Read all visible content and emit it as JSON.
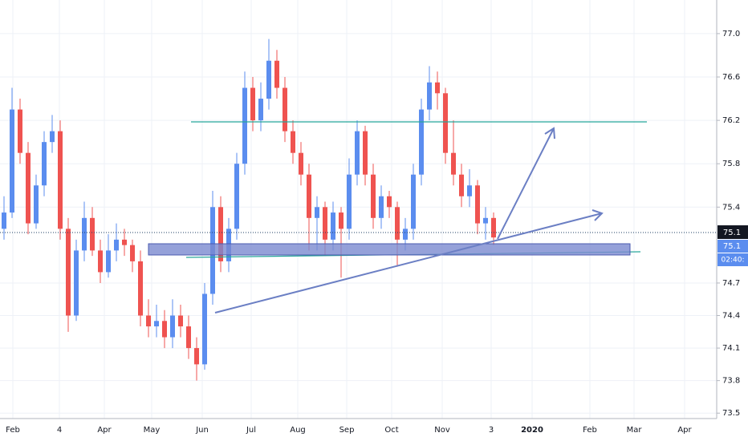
{
  "chart_data": {
    "type": "candlestick",
    "up_color": "#5b8def",
    "down_color": "#ef5350",
    "grid": true,
    "categories": [
      "Feb",
      "4",
      "Apr",
      "May",
      "Jun",
      "Jul",
      "Aug",
      "Sep",
      "Oct",
      "Nov",
      "3",
      "2020",
      "Feb",
      "Mar",
      "Apr"
    ],
    "open": [
      75.2,
      75.35,
      76.3,
      75.9,
      75.25,
      75.6,
      76.0,
      76.1,
      75.2,
      74.4,
      75.0,
      75.3,
      75.0,
      74.8,
      75.0,
      75.1,
      75.05,
      74.9,
      74.4,
      74.3,
      74.35,
      74.2,
      74.4,
      74.3,
      74.1,
      73.95,
      74.6,
      75.4,
      74.9,
      75.2,
      75.8,
      76.5,
      76.2,
      76.4,
      76.75,
      76.5,
      76.1,
      75.9,
      75.7,
      75.3,
      75.4,
      75.1,
      75.35,
      75.2,
      75.7,
      76.1,
      75.7,
      75.3,
      75.5,
      75.4,
      75.1,
      75.2,
      75.7,
      76.3,
      76.55,
      76.45,
      75.9,
      75.7,
      75.5,
      75.6,
      75.25,
      75.3
    ],
    "high": [
      75.5,
      76.5,
      76.4,
      76.0,
      75.7,
      76.1,
      76.25,
      76.2,
      75.3,
      75.1,
      75.45,
      75.4,
      75.1,
      75.15,
      75.25,
      75.2,
      75.1,
      75.0,
      74.55,
      74.5,
      74.45,
      74.55,
      74.5,
      74.4,
      74.2,
      74.7,
      75.55,
      75.5,
      75.3,
      75.9,
      76.65,
      76.6,
      76.55,
      76.95,
      76.85,
      76.6,
      76.2,
      76.0,
      75.8,
      75.5,
      75.45,
      75.45,
      75.4,
      75.85,
      76.2,
      76.15,
      75.8,
      75.6,
      75.55,
      75.45,
      75.3,
      75.8,
      76.4,
      76.7,
      76.65,
      76.5,
      76.2,
      75.8,
      75.75,
      75.65,
      75.4,
      75.35
    ],
    "low": [
      75.1,
      75.3,
      75.8,
      75.15,
      75.2,
      75.5,
      75.9,
      75.1,
      74.25,
      74.35,
      74.9,
      74.95,
      74.7,
      74.75,
      74.9,
      74.95,
      74.8,
      74.3,
      74.2,
      74.2,
      74.1,
      74.1,
      74.2,
      74.0,
      73.8,
      73.9,
      74.5,
      74.8,
      74.8,
      75.1,
      75.7,
      76.1,
      76.1,
      76.3,
      76.4,
      76.0,
      75.8,
      75.6,
      75.0,
      75.0,
      74.95,
      75.0,
      74.75,
      75.1,
      75.6,
      75.6,
      75.2,
      75.2,
      75.3,
      74.85,
      75.0,
      75.1,
      75.6,
      76.2,
      76.3,
      75.8,
      75.6,
      75.4,
      75.4,
      75.15,
      75.1,
      75.05
    ],
    "close": [
      75.35,
      76.3,
      75.9,
      75.25,
      75.6,
      76.0,
      76.1,
      75.2,
      74.4,
      75.0,
      75.3,
      75.0,
      74.8,
      75.0,
      75.1,
      75.05,
      74.9,
      74.4,
      74.3,
      74.35,
      74.2,
      74.4,
      74.3,
      74.1,
      73.95,
      74.6,
      75.4,
      74.9,
      75.2,
      75.8,
      76.5,
      76.2,
      76.4,
      76.75,
      76.5,
      76.1,
      75.9,
      75.7,
      75.3,
      75.4,
      75.1,
      75.35,
      75.2,
      75.7,
      76.1,
      75.7,
      75.3,
      75.5,
      75.4,
      75.1,
      75.2,
      75.7,
      76.3,
      76.55,
      76.45,
      75.9,
      75.7,
      75.5,
      75.6,
      75.25,
      75.3,
      75.12
    ],
    "ylim": [
      73.45,
      77.31
    ],
    "yticks": [
      {
        "value": 77,
        "label": "77.0"
      },
      76.6,
      76.2,
      75.8,
      75.4,
      74.7,
      74.4,
      74.1,
      73.8,
      73.5
    ],
    "price_labels": [
      "75.1",
      "75.1",
      "02:40:"
    ]
  }
}
